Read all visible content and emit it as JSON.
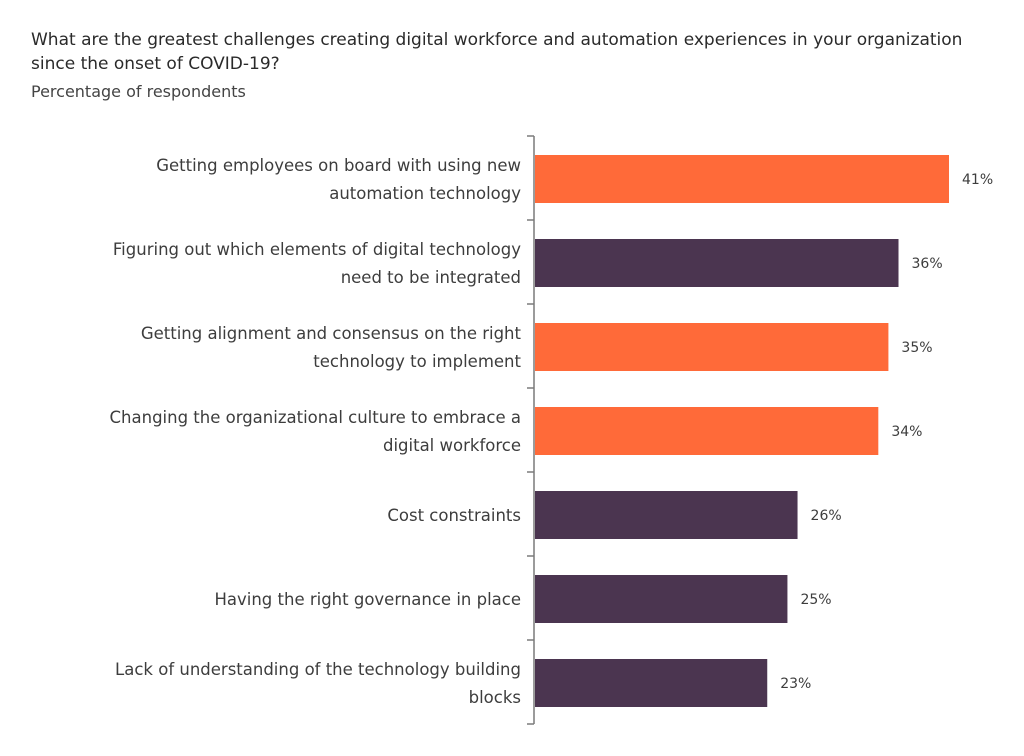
{
  "chart_data": {
    "type": "bar",
    "orientation": "horizontal",
    "title": "What are the greatest challenges creating digital workforce and automation experiences in your organization since the onset of COVID-19?",
    "subtitle": "Percentage of respondents",
    "categories": [
      [
        "Getting employees on board with using new",
        "automation technology"
      ],
      [
        "Figuring out which elements of digital technology",
        "need to be integrated"
      ],
      [
        "Getting alignment and consensus on the right",
        "technology to implement"
      ],
      [
        "Changing the organizational culture to embrace a",
        "digital workforce"
      ],
      [
        "Cost constraints"
      ],
      [
        "Having the right governance in place"
      ],
      [
        "Lack of understanding of the technology building",
        "blocks"
      ]
    ],
    "values": [
      41,
      36,
      35,
      34,
      26,
      25,
      23
    ],
    "value_labels": [
      "41%",
      "36%",
      "35%",
      "34%",
      "26%",
      "25%",
      "23%"
    ],
    "highlight": [
      true,
      false,
      true,
      true,
      false,
      false,
      false
    ],
    "colors": {
      "highlight": "#FF6A39",
      "default": "#4B3550",
      "axis": "#7a7a7a"
    },
    "xlim": [
      0,
      41
    ],
    "grid": false,
    "legend": "none"
  }
}
